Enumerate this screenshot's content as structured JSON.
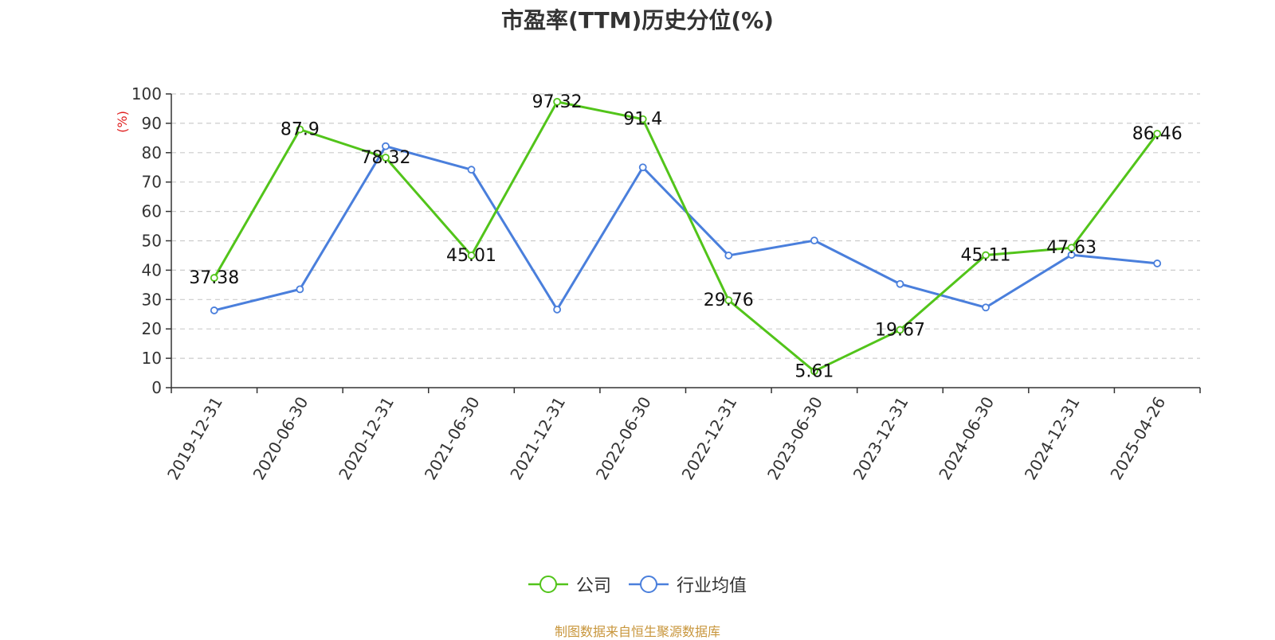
{
  "chart_data": {
    "type": "line",
    "title": "市盈率(TTM)历史分位(%)",
    "ylabel": "(%)",
    "xlabel": "",
    "categories": [
      "2019-12-31",
      "2020-06-30",
      "2020-12-31",
      "2021-06-30",
      "2021-12-31",
      "2022-06-30",
      "2022-12-31",
      "2023-06-30",
      "2023-12-31",
      "2024-06-30",
      "2024-12-31",
      "2025-04-26"
    ],
    "ylim": [
      0,
      100
    ],
    "yticks": [
      0,
      10,
      20,
      30,
      40,
      50,
      60,
      70,
      80,
      90,
      100
    ],
    "grid": true,
    "legend_position": "bottom",
    "series": [
      {
        "name": "公司",
        "color": "#52c41a",
        "labeled": true,
        "values": [
          37.38,
          87.9,
          78.32,
          45.01,
          97.32,
          91.4,
          29.76,
          5.61,
          19.67,
          45.11,
          47.63,
          86.46
        ]
      },
      {
        "name": "行业均值",
        "color": "#4a7fdc",
        "labeled": false,
        "values": [
          26.3,
          33.5,
          82.2,
          74.2,
          26.6,
          75.0,
          45.0,
          50.1,
          35.3,
          27.3,
          45.2,
          42.3
        ]
      }
    ],
    "source": "制图数据来自恒生聚源数据库"
  }
}
